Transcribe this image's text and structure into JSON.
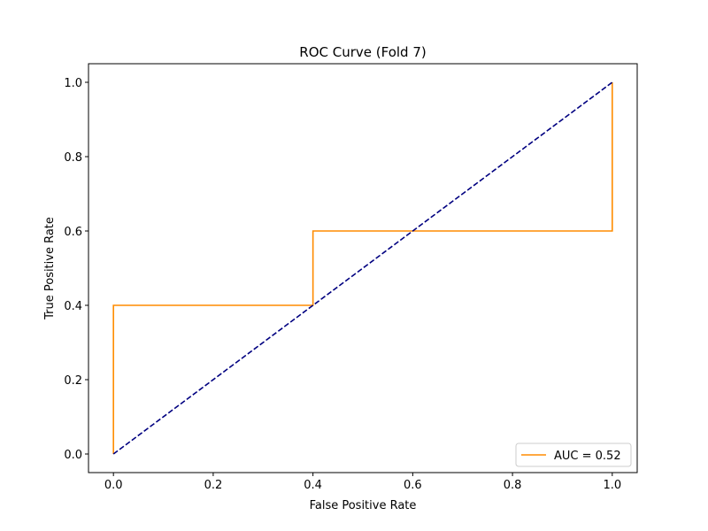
{
  "chart_data": {
    "type": "line",
    "title": "ROC Curve (Fold 7)",
    "xlabel": "False Positive Rate",
    "ylabel": "True Positive Rate",
    "xlim": [
      -0.05,
      1.05
    ],
    "ylim": [
      -0.05,
      1.05
    ],
    "xticks": [
      0.0,
      0.2,
      0.4,
      0.6,
      0.8,
      1.0
    ],
    "yticks": [
      0.0,
      0.2,
      0.4,
      0.6,
      0.8,
      1.0
    ],
    "xtick_labels": [
      "0.0",
      "0.2",
      "0.4",
      "0.6",
      "0.8",
      "1.0"
    ],
    "ytick_labels": [
      "0.0",
      "0.2",
      "0.4",
      "0.6",
      "0.8",
      "1.0"
    ],
    "grid": false,
    "legend_position": "lower right",
    "series": [
      {
        "name": "AUC = 0.52",
        "color": "#ff8c00",
        "style": "solid",
        "x": [
          0.0,
          0.0,
          0.4,
          0.4,
          1.0,
          1.0
        ],
        "y": [
          0.0,
          0.4,
          0.4,
          0.6,
          0.6,
          1.0
        ]
      },
      {
        "color": "#000080",
        "style": "dashed",
        "x": [
          0.0,
          1.0
        ],
        "y": [
          0.0,
          1.0
        ]
      }
    ]
  }
}
